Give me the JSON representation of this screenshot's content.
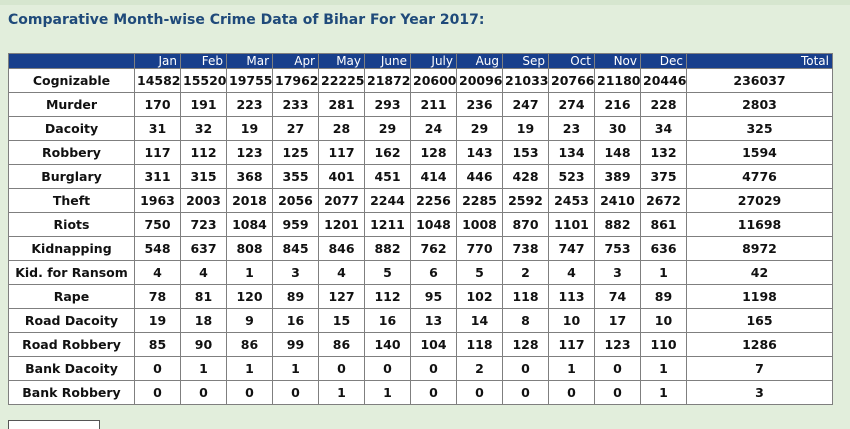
{
  "page": {
    "title": "Comparative Month-wise Crime Data of Bihar For Year 2017:"
  },
  "table": {
    "columns": [
      "Jan",
      "Feb",
      "Mar",
      "Apr",
      "May",
      "June",
      "July",
      "Aug",
      "Sep",
      "Oct",
      "Nov",
      "Dec",
      "Total"
    ],
    "rows": [
      {
        "label": "Cognizable",
        "values": [
          "14582",
          "15520",
          "19755",
          "17962",
          "22225",
          "21872",
          "20600",
          "20096",
          "21033",
          "20766",
          "21180",
          "20446",
          "236037"
        ]
      },
      {
        "label": "Murder",
        "values": [
          "170",
          "191",
          "223",
          "233",
          "281",
          "293",
          "211",
          "236",
          "247",
          "274",
          "216",
          "228",
          "2803"
        ]
      },
      {
        "label": "Dacoity",
        "values": [
          "31",
          "32",
          "19",
          "27",
          "28",
          "29",
          "24",
          "29",
          "19",
          "23",
          "30",
          "34",
          "325"
        ]
      },
      {
        "label": "Robbery",
        "values": [
          "117",
          "112",
          "123",
          "125",
          "117",
          "162",
          "128",
          "143",
          "153",
          "134",
          "148",
          "132",
          "1594"
        ]
      },
      {
        "label": "Burglary",
        "values": [
          "311",
          "315",
          "368",
          "355",
          "401",
          "451",
          "414",
          "446",
          "428",
          "523",
          "389",
          "375",
          "4776"
        ]
      },
      {
        "label": "Theft",
        "values": [
          "1963",
          "2003",
          "2018",
          "2056",
          "2077",
          "2244",
          "2256",
          "2285",
          "2592",
          "2453",
          "2410",
          "2672",
          "27029"
        ]
      },
      {
        "label": "Riots",
        "values": [
          "750",
          "723",
          "1084",
          "959",
          "1201",
          "1211",
          "1048",
          "1008",
          "870",
          "1101",
          "882",
          "861",
          "11698"
        ]
      },
      {
        "label": "Kidnapping",
        "values": [
          "548",
          "637",
          "808",
          "845",
          "846",
          "882",
          "762",
          "770",
          "738",
          "747",
          "753",
          "636",
          "8972"
        ]
      },
      {
        "label": "Kid. for Ransom",
        "values": [
          "4",
          "4",
          "1",
          "3",
          "4",
          "5",
          "6",
          "5",
          "2",
          "4",
          "3",
          "1",
          "42"
        ]
      },
      {
        "label": "Rape",
        "values": [
          "78",
          "81",
          "120",
          "89",
          "127",
          "112",
          "95",
          "102",
          "118",
          "113",
          "74",
          "89",
          "1198"
        ]
      },
      {
        "label": "Road Dacoity",
        "values": [
          "19",
          "18",
          "9",
          "16",
          "15",
          "16",
          "13",
          "14",
          "8",
          "10",
          "17",
          "10",
          "165"
        ]
      },
      {
        "label": "Road Robbery",
        "values": [
          "85",
          "90",
          "86",
          "99",
          "86",
          "140",
          "104",
          "118",
          "128",
          "117",
          "123",
          "110",
          "1286"
        ]
      },
      {
        "label": "Bank Dacoity",
        "values": [
          "0",
          "1",
          "1",
          "1",
          "0",
          "0",
          "0",
          "2",
          "0",
          "1",
          "0",
          "1",
          "7"
        ]
      },
      {
        "label": "Bank Robbery",
        "values": [
          "0",
          "0",
          "0",
          "0",
          "1",
          "1",
          "0",
          "0",
          "0",
          "0",
          "0",
          "1",
          "3"
        ]
      }
    ]
  },
  "colors": {
    "page_background": "#e2eedc",
    "title_text": "#1f4a7a",
    "header_background": "#183f8c",
    "header_text": "#ffffff",
    "cell_background": "#ffffff",
    "grid_line": "#7f7f7f"
  }
}
